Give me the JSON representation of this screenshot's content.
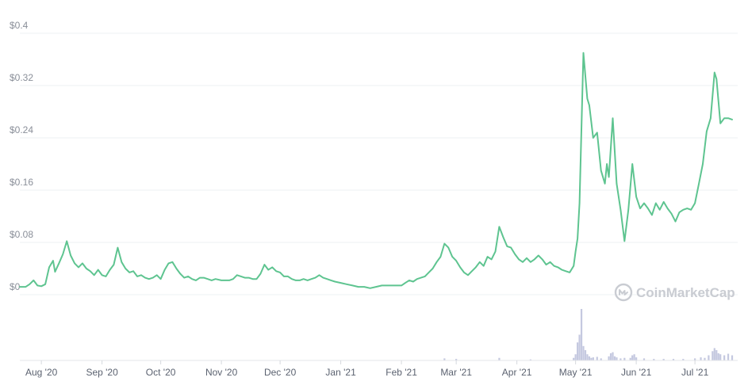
{
  "chart_data": {
    "type": "line",
    "y_axis": {
      "min": 0,
      "max": 0.4,
      "ticks": [
        0,
        0.08,
        0.16,
        0.24,
        0.32,
        0.4
      ],
      "tick_labels": [
        "$0",
        "$0.08",
        "$0.16",
        "$0.24",
        "$0.32",
        "$0.4"
      ]
    },
    "x_axis": {
      "start": "2020-07-21",
      "end": "2021-07-20",
      "ticks": [
        {
          "date": "2020-08-01",
          "label": "Aug '20"
        },
        {
          "date": "2020-09-01",
          "label": "Sep '20"
        },
        {
          "date": "2020-10-01",
          "label": "Oct '20"
        },
        {
          "date": "2020-11-01",
          "label": "Nov '20"
        },
        {
          "date": "2020-12-01",
          "label": "Dec '20"
        },
        {
          "date": "2021-01-01",
          "label": "Jan '21"
        },
        {
          "date": "2021-02-01",
          "label": "Feb '21"
        },
        {
          "date": "2021-03-01",
          "label": "Mar '21"
        },
        {
          "date": "2021-04-01",
          "label": "Apr '21"
        },
        {
          "date": "2021-05-01",
          "label": "May '21"
        },
        {
          "date": "2021-06-01",
          "label": "Jun '21"
        },
        {
          "date": "2021-07-01",
          "label": "Jul '21"
        }
      ]
    },
    "price_series": {
      "color": "#5ec490",
      "points": [
        [
          "2020-07-21",
          0.012
        ],
        [
          "2020-07-24",
          0.012
        ],
        [
          "2020-07-26",
          0.016
        ],
        [
          "2020-07-28",
          0.022
        ],
        [
          "2020-07-30",
          0.014
        ],
        [
          "2020-08-01",
          0.013
        ],
        [
          "2020-08-03",
          0.016
        ],
        [
          "2020-08-05",
          0.042
        ],
        [
          "2020-08-07",
          0.052
        ],
        [
          "2020-08-08",
          0.035
        ],
        [
          "2020-08-10",
          0.048
        ],
        [
          "2020-08-12",
          0.062
        ],
        [
          "2020-08-14",
          0.082
        ],
        [
          "2020-08-16",
          0.06
        ],
        [
          "2020-08-18",
          0.048
        ],
        [
          "2020-08-20",
          0.042
        ],
        [
          "2020-08-22",
          0.048
        ],
        [
          "2020-08-24",
          0.04
        ],
        [
          "2020-08-26",
          0.036
        ],
        [
          "2020-08-28",
          0.03
        ],
        [
          "2020-08-30",
          0.038
        ],
        [
          "2020-09-01",
          0.03
        ],
        [
          "2020-09-03",
          0.028
        ],
        [
          "2020-09-05",
          0.038
        ],
        [
          "2020-09-07",
          0.046
        ],
        [
          "2020-09-09",
          0.072
        ],
        [
          "2020-09-11",
          0.05
        ],
        [
          "2020-09-13",
          0.04
        ],
        [
          "2020-09-15",
          0.034
        ],
        [
          "2020-09-17",
          0.036
        ],
        [
          "2020-09-19",
          0.028
        ],
        [
          "2020-09-21",
          0.03
        ],
        [
          "2020-09-23",
          0.026
        ],
        [
          "2020-09-25",
          0.024
        ],
        [
          "2020-09-27",
          0.026
        ],
        [
          "2020-09-29",
          0.03
        ],
        [
          "2020-10-01",
          0.024
        ],
        [
          "2020-10-03",
          0.038
        ],
        [
          "2020-10-05",
          0.048
        ],
        [
          "2020-10-07",
          0.05
        ],
        [
          "2020-10-09",
          0.04
        ],
        [
          "2020-10-11",
          0.032
        ],
        [
          "2020-10-13",
          0.026
        ],
        [
          "2020-10-15",
          0.028
        ],
        [
          "2020-10-17",
          0.024
        ],
        [
          "2020-10-19",
          0.022
        ],
        [
          "2020-10-21",
          0.026
        ],
        [
          "2020-10-23",
          0.026
        ],
        [
          "2020-10-25",
          0.024
        ],
        [
          "2020-10-27",
          0.022
        ],
        [
          "2020-10-29",
          0.024
        ],
        [
          "2020-11-01",
          0.022
        ],
        [
          "2020-11-03",
          0.022
        ],
        [
          "2020-11-05",
          0.022
        ],
        [
          "2020-11-07",
          0.024
        ],
        [
          "2020-11-09",
          0.03
        ],
        [
          "2020-11-11",
          0.028
        ],
        [
          "2020-11-13",
          0.026
        ],
        [
          "2020-11-15",
          0.026
        ],
        [
          "2020-11-17",
          0.024
        ],
        [
          "2020-11-19",
          0.024
        ],
        [
          "2020-11-21",
          0.032
        ],
        [
          "2020-11-23",
          0.046
        ],
        [
          "2020-11-25",
          0.038
        ],
        [
          "2020-11-27",
          0.042
        ],
        [
          "2020-11-29",
          0.036
        ],
        [
          "2020-12-01",
          0.034
        ],
        [
          "2020-12-03",
          0.028
        ],
        [
          "2020-12-05",
          0.028
        ],
        [
          "2020-12-07",
          0.024
        ],
        [
          "2020-12-09",
          0.022
        ],
        [
          "2020-12-11",
          0.022
        ],
        [
          "2020-12-13",
          0.024
        ],
        [
          "2020-12-15",
          0.022
        ],
        [
          "2020-12-17",
          0.024
        ],
        [
          "2020-12-19",
          0.026
        ],
        [
          "2020-12-21",
          0.03
        ],
        [
          "2020-12-23",
          0.026
        ],
        [
          "2020-12-25",
          0.024
        ],
        [
          "2020-12-27",
          0.022
        ],
        [
          "2020-12-29",
          0.02
        ],
        [
          "2021-01-01",
          0.018
        ],
        [
          "2021-01-04",
          0.016
        ],
        [
          "2021-01-07",
          0.014
        ],
        [
          "2021-01-10",
          0.012
        ],
        [
          "2021-01-13",
          0.012
        ],
        [
          "2021-01-16",
          0.01
        ],
        [
          "2021-01-19",
          0.012
        ],
        [
          "2021-01-22",
          0.014
        ],
        [
          "2021-01-25",
          0.014
        ],
        [
          "2021-01-28",
          0.014
        ],
        [
          "2021-02-01",
          0.014
        ],
        [
          "2021-02-03",
          0.018
        ],
        [
          "2021-02-05",
          0.022
        ],
        [
          "2021-02-07",
          0.02
        ],
        [
          "2021-02-09",
          0.024
        ],
        [
          "2021-02-11",
          0.026
        ],
        [
          "2021-02-13",
          0.028
        ],
        [
          "2021-02-15",
          0.034
        ],
        [
          "2021-02-17",
          0.04
        ],
        [
          "2021-02-19",
          0.05
        ],
        [
          "2021-02-21",
          0.058
        ],
        [
          "2021-02-23",
          0.078
        ],
        [
          "2021-02-25",
          0.072
        ],
        [
          "2021-02-27",
          0.058
        ],
        [
          "2021-03-01",
          0.052
        ],
        [
          "2021-03-03",
          0.042
        ],
        [
          "2021-03-05",
          0.034
        ],
        [
          "2021-03-07",
          0.03
        ],
        [
          "2021-03-09",
          0.036
        ],
        [
          "2021-03-11",
          0.042
        ],
        [
          "2021-03-13",
          0.05
        ],
        [
          "2021-03-15",
          0.044
        ],
        [
          "2021-03-17",
          0.058
        ],
        [
          "2021-03-19",
          0.054
        ],
        [
          "2021-03-21",
          0.066
        ],
        [
          "2021-03-23",
          0.104
        ],
        [
          "2021-03-25",
          0.088
        ],
        [
          "2021-03-27",
          0.074
        ],
        [
          "2021-03-29",
          0.072
        ],
        [
          "2021-03-31",
          0.062
        ],
        [
          "2021-04-02",
          0.054
        ],
        [
          "2021-04-04",
          0.05
        ],
        [
          "2021-04-06",
          0.056
        ],
        [
          "2021-04-08",
          0.05
        ],
        [
          "2021-04-10",
          0.054
        ],
        [
          "2021-04-12",
          0.06
        ],
        [
          "2021-04-14",
          0.054
        ],
        [
          "2021-04-16",
          0.046
        ],
        [
          "2021-04-18",
          0.05
        ],
        [
          "2021-04-20",
          0.044
        ],
        [
          "2021-04-22",
          0.042
        ],
        [
          "2021-04-24",
          0.038
        ],
        [
          "2021-04-26",
          0.036
        ],
        [
          "2021-04-28",
          0.034
        ],
        [
          "2021-04-30",
          0.044
        ],
        [
          "2021-05-01",
          0.066
        ],
        [
          "2021-05-02",
          0.086
        ],
        [
          "2021-05-03",
          0.14
        ],
        [
          "2021-05-05",
          0.37
        ],
        [
          "2021-05-07",
          0.3
        ],
        [
          "2021-05-08",
          0.29
        ],
        [
          "2021-05-10",
          0.24
        ],
        [
          "2021-05-12",
          0.248
        ],
        [
          "2021-05-14",
          0.19
        ],
        [
          "2021-05-16",
          0.17
        ],
        [
          "2021-05-17",
          0.2
        ],
        [
          "2021-05-18",
          0.18
        ],
        [
          "2021-05-20",
          0.27
        ],
        [
          "2021-05-22",
          0.17
        ],
        [
          "2021-05-24",
          0.13
        ],
        [
          "2021-05-26",
          0.082
        ],
        [
          "2021-05-28",
          0.13
        ],
        [
          "2021-05-30",
          0.2
        ],
        [
          "2021-06-01",
          0.15
        ],
        [
          "2021-06-03",
          0.132
        ],
        [
          "2021-06-05",
          0.14
        ],
        [
          "2021-06-07",
          0.132
        ],
        [
          "2021-06-09",
          0.122
        ],
        [
          "2021-06-11",
          0.14
        ],
        [
          "2021-06-13",
          0.13
        ],
        [
          "2021-06-15",
          0.142
        ],
        [
          "2021-06-17",
          0.132
        ],
        [
          "2021-06-19",
          0.124
        ],
        [
          "2021-06-21",
          0.112
        ],
        [
          "2021-06-23",
          0.126
        ],
        [
          "2021-06-25",
          0.13
        ],
        [
          "2021-06-27",
          0.132
        ],
        [
          "2021-06-29",
          0.13
        ],
        [
          "2021-07-01",
          0.14
        ],
        [
          "2021-07-03",
          0.17
        ],
        [
          "2021-07-05",
          0.2
        ],
        [
          "2021-07-07",
          0.25
        ],
        [
          "2021-07-09",
          0.27
        ],
        [
          "2021-07-11",
          0.34
        ],
        [
          "2021-07-12",
          0.33
        ],
        [
          "2021-07-14",
          0.262
        ],
        [
          "2021-07-16",
          0.27
        ],
        [
          "2021-07-18",
          0.27
        ],
        [
          "2021-07-20",
          0.268
        ]
      ]
    },
    "volume_series": {
      "color": "#c5c9e0",
      "points": [
        [
          "2021-02-23",
          0.04
        ],
        [
          "2021-03-01",
          0.03
        ],
        [
          "2021-03-23",
          0.05
        ],
        [
          "2021-04-08",
          0.02
        ],
        [
          "2021-04-30",
          0.05
        ],
        [
          "2021-05-01",
          0.12
        ],
        [
          "2021-05-02",
          0.35
        ],
        [
          "2021-05-03",
          0.5
        ],
        [
          "2021-05-04",
          1.0
        ],
        [
          "2021-05-05",
          0.28
        ],
        [
          "2021-05-06",
          0.2
        ],
        [
          "2021-05-07",
          0.12
        ],
        [
          "2021-05-08",
          0.08
        ],
        [
          "2021-05-09",
          0.05
        ],
        [
          "2021-05-10",
          0.06
        ],
        [
          "2021-05-12",
          0.07
        ],
        [
          "2021-05-14",
          0.04
        ],
        [
          "2021-05-18",
          0.08
        ],
        [
          "2021-05-19",
          0.14
        ],
        [
          "2021-05-20",
          0.16
        ],
        [
          "2021-05-21",
          0.08
        ],
        [
          "2021-05-22",
          0.06
        ],
        [
          "2021-05-24",
          0.04
        ],
        [
          "2021-05-26",
          0.05
        ],
        [
          "2021-05-29",
          0.05
        ],
        [
          "2021-05-30",
          0.1
        ],
        [
          "2021-05-31",
          0.12
        ],
        [
          "2021-06-01",
          0.06
        ],
        [
          "2021-06-05",
          0.04
        ],
        [
          "2021-06-10",
          0.03
        ],
        [
          "2021-06-15",
          0.03
        ],
        [
          "2021-06-20",
          0.03
        ],
        [
          "2021-06-25",
          0.03
        ],
        [
          "2021-07-01",
          0.04
        ],
        [
          "2021-07-04",
          0.06
        ],
        [
          "2021-07-06",
          0.05
        ],
        [
          "2021-07-08",
          0.1
        ],
        [
          "2021-07-10",
          0.18
        ],
        [
          "2021-07-11",
          0.24
        ],
        [
          "2021-07-12",
          0.2
        ],
        [
          "2021-07-13",
          0.14
        ],
        [
          "2021-07-14",
          0.12
        ],
        [
          "2021-07-16",
          0.1
        ],
        [
          "2021-07-18",
          0.13
        ],
        [
          "2021-07-20",
          0.1
        ]
      ]
    }
  },
  "watermark": {
    "text": "CoinMarketCap",
    "icon": "coinmarketcap-logo-icon"
  }
}
